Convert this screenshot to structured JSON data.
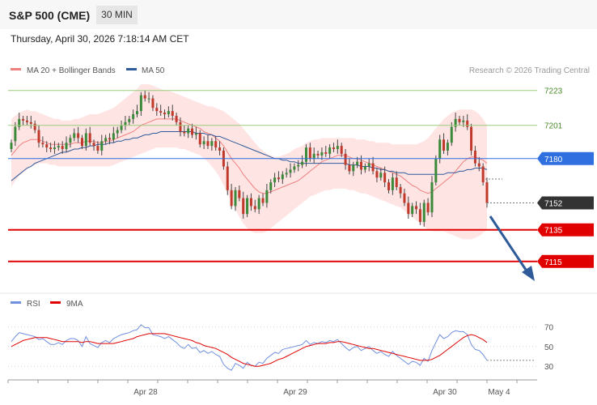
{
  "header": {
    "instrument": "S&P 500 (CME)",
    "timeframe": "30 MIN"
  },
  "datetime": "Thursday, April 30, 2026 7:18:14 AM CET",
  "legend": {
    "ma20_label": "MA 20 + Bollinger Bands",
    "ma50_label": "MA 50",
    "copyright": "Research © 2026 Trading Central",
    "rsi_label": "RSI",
    "ma9_label": "9MA"
  },
  "colors": {
    "up": "#3a8a3a",
    "down": "#c0392b",
    "ma20": "#f08080",
    "bands": "#ffd9d9",
    "ma50": "#2f5b9a",
    "support": "#e00000",
    "pivot": "#2f6fe0",
    "resistance": "#9acd7a",
    "current": "#333333",
    "arrow": "#2f5b9a",
    "rsi": "#6f8fdf",
    "rsi_ma": "#e00000"
  },
  "chart_data": [
    {
      "type": "candlestick",
      "title": "S&P 500 (CME) 30 MIN",
      "ylim": [
        7098,
        7229
      ],
      "x_labels": [
        "Apr 28",
        "Apr 29",
        "Apr 30",
        "May 4"
      ],
      "levels": [
        {
          "value": 7223,
          "label": "7223",
          "kind": "resistance"
        },
        {
          "value": 7201,
          "label": "7201",
          "kind": "resistance"
        },
        {
          "value": 7180,
          "label": "7180",
          "kind": "pivot"
        },
        {
          "value": 7152,
          "label": "7152",
          "kind": "current"
        },
        {
          "value": 7135,
          "label": "7135",
          "kind": "support"
        },
        {
          "value": 7115,
          "label": "7115",
          "kind": "support"
        }
      ],
      "close": [
        7190,
        7200,
        7205,
        7204,
        7203,
        7202,
        7198,
        7190,
        7189,
        7187,
        7186,
        7187,
        7188,
        7186,
        7190,
        7193,
        7196,
        7193,
        7188,
        7196,
        7190,
        7188,
        7185,
        7191,
        7193,
        7192,
        7196,
        7198,
        7201,
        7203,
        7205,
        7208,
        7210,
        7220,
        7218,
        7218,
        7212,
        7210,
        7209,
        7208,
        7210,
        7207,
        7203,
        7197,
        7196,
        7199,
        7195,
        7196,
        7189,
        7191,
        7188,
        7191,
        7187,
        7185,
        7175,
        7160,
        7150,
        7160,
        7155,
        7145,
        7155,
        7150,
        7148,
        7155,
        7152,
        7160,
        7165,
        7168,
        7167,
        7170,
        7171,
        7173,
        7175,
        7176,
        7178,
        7187,
        7180,
        7183,
        7182,
        7184,
        7183,
        7187,
        7186,
        7188,
        7183,
        7176,
        7172,
        7176,
        7178,
        7173,
        7175,
        7177,
        7172,
        7168,
        7171,
        7165,
        7160,
        7168,
        7162,
        7158,
        7152,
        7145,
        7150,
        7148,
        7140,
        7152,
        7146,
        7165,
        7180,
        7192,
        7185,
        7190,
        7200,
        7205,
        7203,
        7204,
        7200,
        7185,
        7177,
        7175,
        7165,
        7152
      ],
      "open": [
        7186,
        7191,
        7200,
        7205,
        7204,
        7203,
        7202,
        7198,
        7190,
        7189,
        7187,
        7186,
        7187,
        7188,
        7186,
        7190,
        7193,
        7196,
        7193,
        7188,
        7196,
        7190,
        7188,
        7185,
        7191,
        7193,
        7192,
        7196,
        7198,
        7201,
        7203,
        7205,
        7208,
        7210,
        7220,
        7218,
        7218,
        7212,
        7210,
        7209,
        7208,
        7210,
        7207,
        7203,
        7197,
        7196,
        7199,
        7195,
        7196,
        7189,
        7191,
        7188,
        7191,
        7187,
        7185,
        7175,
        7160,
        7150,
        7160,
        7155,
        7145,
        7155,
        7150,
        7148,
        7155,
        7152,
        7160,
        7165,
        7168,
        7167,
        7170,
        7171,
        7173,
        7175,
        7176,
        7178,
        7187,
        7180,
        7183,
        7182,
        7184,
        7183,
        7187,
        7186,
        7188,
        7183,
        7176,
        7172,
        7176,
        7178,
        7173,
        7175,
        7177,
        7172,
        7168,
        7171,
        7165,
        7160,
        7168,
        7162,
        7158,
        7152,
        7145,
        7150,
        7148,
        7140,
        7152,
        7146,
        7165,
        7180,
        7192,
        7185,
        7190,
        7200,
        7205,
        7203,
        7204,
        7200,
        7185,
        7177,
        7175,
        7165
      ],
      "ma20": [
        7182,
        7185,
        7188,
        7190,
        7191,
        7192,
        7192,
        7192,
        7191,
        7190,
        7189,
        7189,
        7189,
        7189,
        7189,
        7189,
        7190,
        7190,
        7190,
        7191,
        7191,
        7191,
        7190,
        7190,
        7191,
        7191,
        7192,
        7193,
        7194,
        7195,
        7196,
        7197,
        7199,
        7201,
        7202,
        7203,
        7204,
        7205,
        7205,
        7205,
        7205,
        7205,
        7205,
        7204,
        7203,
        7202,
        7201,
        7200,
        7199,
        7197,
        7196,
        7195,
        7193,
        7191,
        7188,
        7184,
        7180,
        7177,
        7174,
        7170,
        7167,
        7164,
        7161,
        7159,
        7158,
        7158,
        7159,
        7160,
        7161,
        7162,
        7163,
        7164,
        7165,
        7166,
        7168,
        7170,
        7172,
        7174,
        7176,
        7178,
        7179,
        7180,
        7181,
        7182,
        7182,
        7182,
        7181,
        7180,
        7180,
        7179,
        7178,
        7177,
        7176,
        7175,
        7174,
        7173,
        7172,
        7171,
        7170,
        7169,
        7167,
        7165,
        7163,
        7162,
        7160,
        7159,
        7158,
        7159,
        7161,
        7163,
        7165,
        7167,
        7169,
        7172,
        7175,
        7178,
        7180,
        7181,
        7181,
        7180,
        7179,
        7177
      ],
      "ma50": [
        7166,
        7168,
        7170,
        7172,
        7174,
        7175,
        7177,
        7178,
        7179,
        7180,
        7181,
        7182,
        7183,
        7184,
        7184,
        7185,
        7186,
        7186,
        7187,
        7187,
        7188,
        7188,
        7189,
        7189,
        7189,
        7190,
        7190,
        7191,
        7191,
        7192,
        7192,
        7193,
        7193,
        7194,
        7195,
        7195,
        7196,
        7196,
        7197,
        7197,
        7197,
        7197,
        7197,
        7197,
        7197,
        7197,
        7197,
        7196,
        7196,
        7196,
        7195,
        7195,
        7194,
        7194,
        7193,
        7192,
        7191,
        7190,
        7189,
        7188,
        7187,
        7186,
        7185,
        7184,
        7183,
        7182,
        7181,
        7180,
        7180,
        7179,
        7179,
        7178,
        7178,
        7177,
        7177,
        7177,
        7177,
        7177,
        7177,
        7177,
        7177,
        7177,
        7177,
        7177,
        7177,
        7177,
        7176,
        7176,
        7176,
        7175,
        7175,
        7175,
        7174,
        7174,
        7173,
        7173,
        7172,
        7172,
        7171,
        7171,
        7171,
        7170,
        7170,
        7170,
        7170,
        7170,
        7170,
        7170,
        7170,
        7170,
        7170,
        7171,
        7171,
        7171,
        7172,
        7172,
        7173,
        7173,
        7174,
        7174,
        7174,
        7173
      ],
      "band_upper": [
        7205,
        7207,
        7209,
        7210,
        7211,
        7210,
        7210,
        7209,
        7208,
        7207,
        7206,
        7205,
        7205,
        7204,
        7204,
        7204,
        7205,
        7205,
        7206,
        7207,
        7208,
        7208,
        7208,
        7209,
        7210,
        7211,
        7212,
        7214,
        7216,
        7218,
        7220,
        7222,
        7224,
        7227,
        7227,
        7227,
        7226,
        7225,
        7224,
        7223,
        7223,
        7222,
        7221,
        7220,
        7219,
        7218,
        7217,
        7216,
        7215,
        7214,
        7213,
        7213,
        7212,
        7211,
        7210,
        7208,
        7206,
        7204,
        7202,
        7199,
        7196,
        7193,
        7190,
        7187,
        7185,
        7183,
        7182,
        7181,
        7181,
        7182,
        7183,
        7184,
        7186,
        7187,
        7188,
        7190,
        7191,
        7192,
        7192,
        7193,
        7193,
        7193,
        7193,
        7193,
        7193,
        7193,
        7193,
        7193,
        7192,
        7192,
        7192,
        7191,
        7191,
        7190,
        7190,
        7190,
        7190,
        7189,
        7189,
        7189,
        7189,
        7189,
        7189,
        7189,
        7190,
        7191,
        7193,
        7196,
        7199,
        7202,
        7205,
        7207,
        7209,
        7210,
        7211,
        7211,
        7211,
        7211,
        7210,
        7208,
        7205,
        7201
      ],
      "band_lower": [
        7162,
        7166,
        7169,
        7171,
        7173,
        7175,
        7176,
        7177,
        7177,
        7177,
        7176,
        7176,
        7175,
        7175,
        7175,
        7175,
        7175,
        7175,
        7175,
        7175,
        7175,
        7175,
        7175,
        7175,
        7175,
        7175,
        7176,
        7177,
        7178,
        7179,
        7180,
        7181,
        7182,
        7183,
        7184,
        7185,
        7186,
        7187,
        7187,
        7187,
        7187,
        7187,
        7187,
        7186,
        7186,
        7185,
        7184,
        7183,
        7182,
        7180,
        7178,
        7175,
        7172,
        7168,
        7163,
        7158,
        7153,
        7148,
        7143,
        7139,
        7136,
        7134,
        7133,
        7133,
        7133,
        7134,
        7136,
        7138,
        7140,
        7142,
        7144,
        7146,
        7148,
        7150,
        7152,
        7154,
        7156,
        7157,
        7158,
        7159,
        7160,
        7160,
        7161,
        7161,
        7161,
        7161,
        7160,
        7160,
        7159,
        7158,
        7158,
        7157,
        7156,
        7155,
        7154,
        7153,
        7152,
        7151,
        7150,
        7149,
        7147,
        7145,
        7143,
        7141,
        7139,
        7137,
        7135,
        7134,
        7134,
        7134,
        7134,
        7133,
        7132,
        7131,
        7130,
        7129,
        7129,
        7129,
        7130,
        7131,
        7133,
        7135
      ]
    },
    {
      "type": "line",
      "title": "RSI",
      "ylim": [
        22,
        76
      ],
      "yticks": [
        30,
        50,
        70
      ],
      "series": [
        {
          "name": "RSI",
          "values": [
            55,
            60,
            64,
            63,
            62,
            61,
            60,
            57,
            58,
            55,
            52,
            52,
            54,
            52,
            56,
            58,
            58,
            56,
            50,
            60,
            53,
            51,
            49,
            54,
            56,
            54,
            58,
            60,
            62,
            63,
            64,
            66,
            67,
            72,
            69,
            69,
            62,
            61,
            60,
            58,
            60,
            57,
            54,
            50,
            48,
            52,
            48,
            49,
            44,
            46,
            43,
            45,
            42,
            40,
            32,
            28,
            26,
            33,
            31,
            28,
            34,
            31,
            30,
            34,
            33,
            38,
            41,
            44,
            43,
            47,
            48,
            49,
            50,
            51,
            52,
            56,
            52,
            54,
            53,
            55,
            54,
            56,
            55,
            57,
            53,
            49,
            46,
            49,
            50,
            46,
            48,
            50,
            46,
            43,
            45,
            42,
            40,
            45,
            41,
            38,
            35,
            32,
            35,
            34,
            31,
            38,
            35,
            46,
            54,
            62,
            58,
            60,
            64,
            66,
            65,
            65,
            62,
            52,
            47,
            46,
            42,
            36
          ]
        },
        {
          "name": "9MA",
          "values": [
            50,
            52,
            54,
            56,
            57,
            58,
            59,
            59,
            59,
            59,
            58,
            57,
            56,
            55,
            55,
            55,
            55,
            55,
            54,
            55,
            55,
            54,
            53,
            53,
            53,
            53,
            53,
            54,
            55,
            56,
            57,
            58,
            60,
            61,
            62,
            63,
            63,
            63,
            63,
            63,
            62,
            61,
            60,
            59,
            58,
            57,
            56,
            54,
            53,
            51,
            50,
            49,
            48,
            46,
            44,
            42,
            39,
            37,
            35,
            33,
            32,
            31,
            30,
            30,
            31,
            32,
            33,
            35,
            37,
            38,
            40,
            42,
            44,
            46,
            48,
            50,
            51,
            52,
            53,
            53,
            53,
            54,
            54,
            55,
            55,
            54,
            53,
            52,
            51,
            50,
            49,
            48,
            48,
            47,
            46,
            45,
            44,
            43,
            42,
            41,
            40,
            39,
            38,
            37,
            36,
            36,
            36,
            37,
            39,
            41,
            44,
            47,
            50,
            53,
            56,
            59,
            61,
            62,
            61,
            59,
            57,
            54
          ]
        }
      ]
    }
  ]
}
